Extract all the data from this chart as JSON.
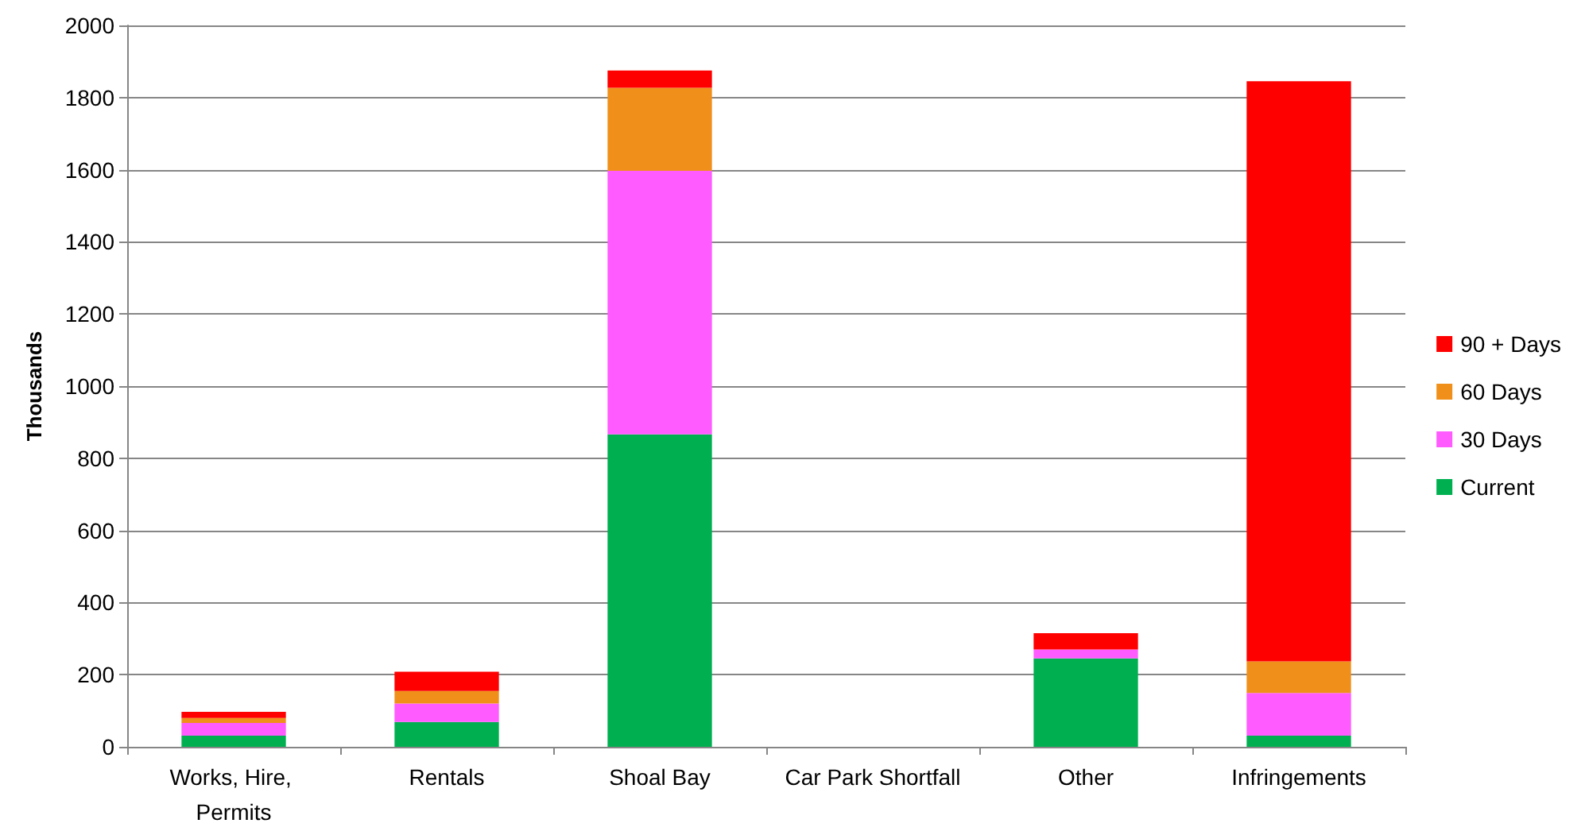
{
  "chart_data": {
    "type": "bar",
    "ylabel": "Thousands",
    "stacked": true,
    "categories": [
      "Works, Hire, Permits",
      "Rentals",
      "Shoal Bay",
      "Car Park Shortfall",
      "Other",
      "Infringements"
    ],
    "series": [
      {
        "name": "Current",
        "color": "#00b050",
        "values": [
          31,
          69,
          866,
          0,
          245,
          31
        ]
      },
      {
        "name": "30 Days",
        "color": "#ff5bff",
        "values": [
          35,
          51,
          731,
          0,
          25,
          118
        ]
      },
      {
        "name": "60 Days",
        "color": "#f0901a",
        "values": [
          14,
          35,
          230,
          0,
          0,
          88
        ]
      },
      {
        "name": "90 + Days",
        "color": "#ff0000",
        "values": [
          17,
          53,
          48,
          0,
          45,
          1608
        ]
      }
    ],
    "ylim": [
      0,
      2000
    ],
    "yticks": [
      0,
      200,
      400,
      600,
      800,
      1000,
      1200,
      1400,
      1600,
      1800,
      2000
    ],
    "grid": "y",
    "legend": "right"
  }
}
